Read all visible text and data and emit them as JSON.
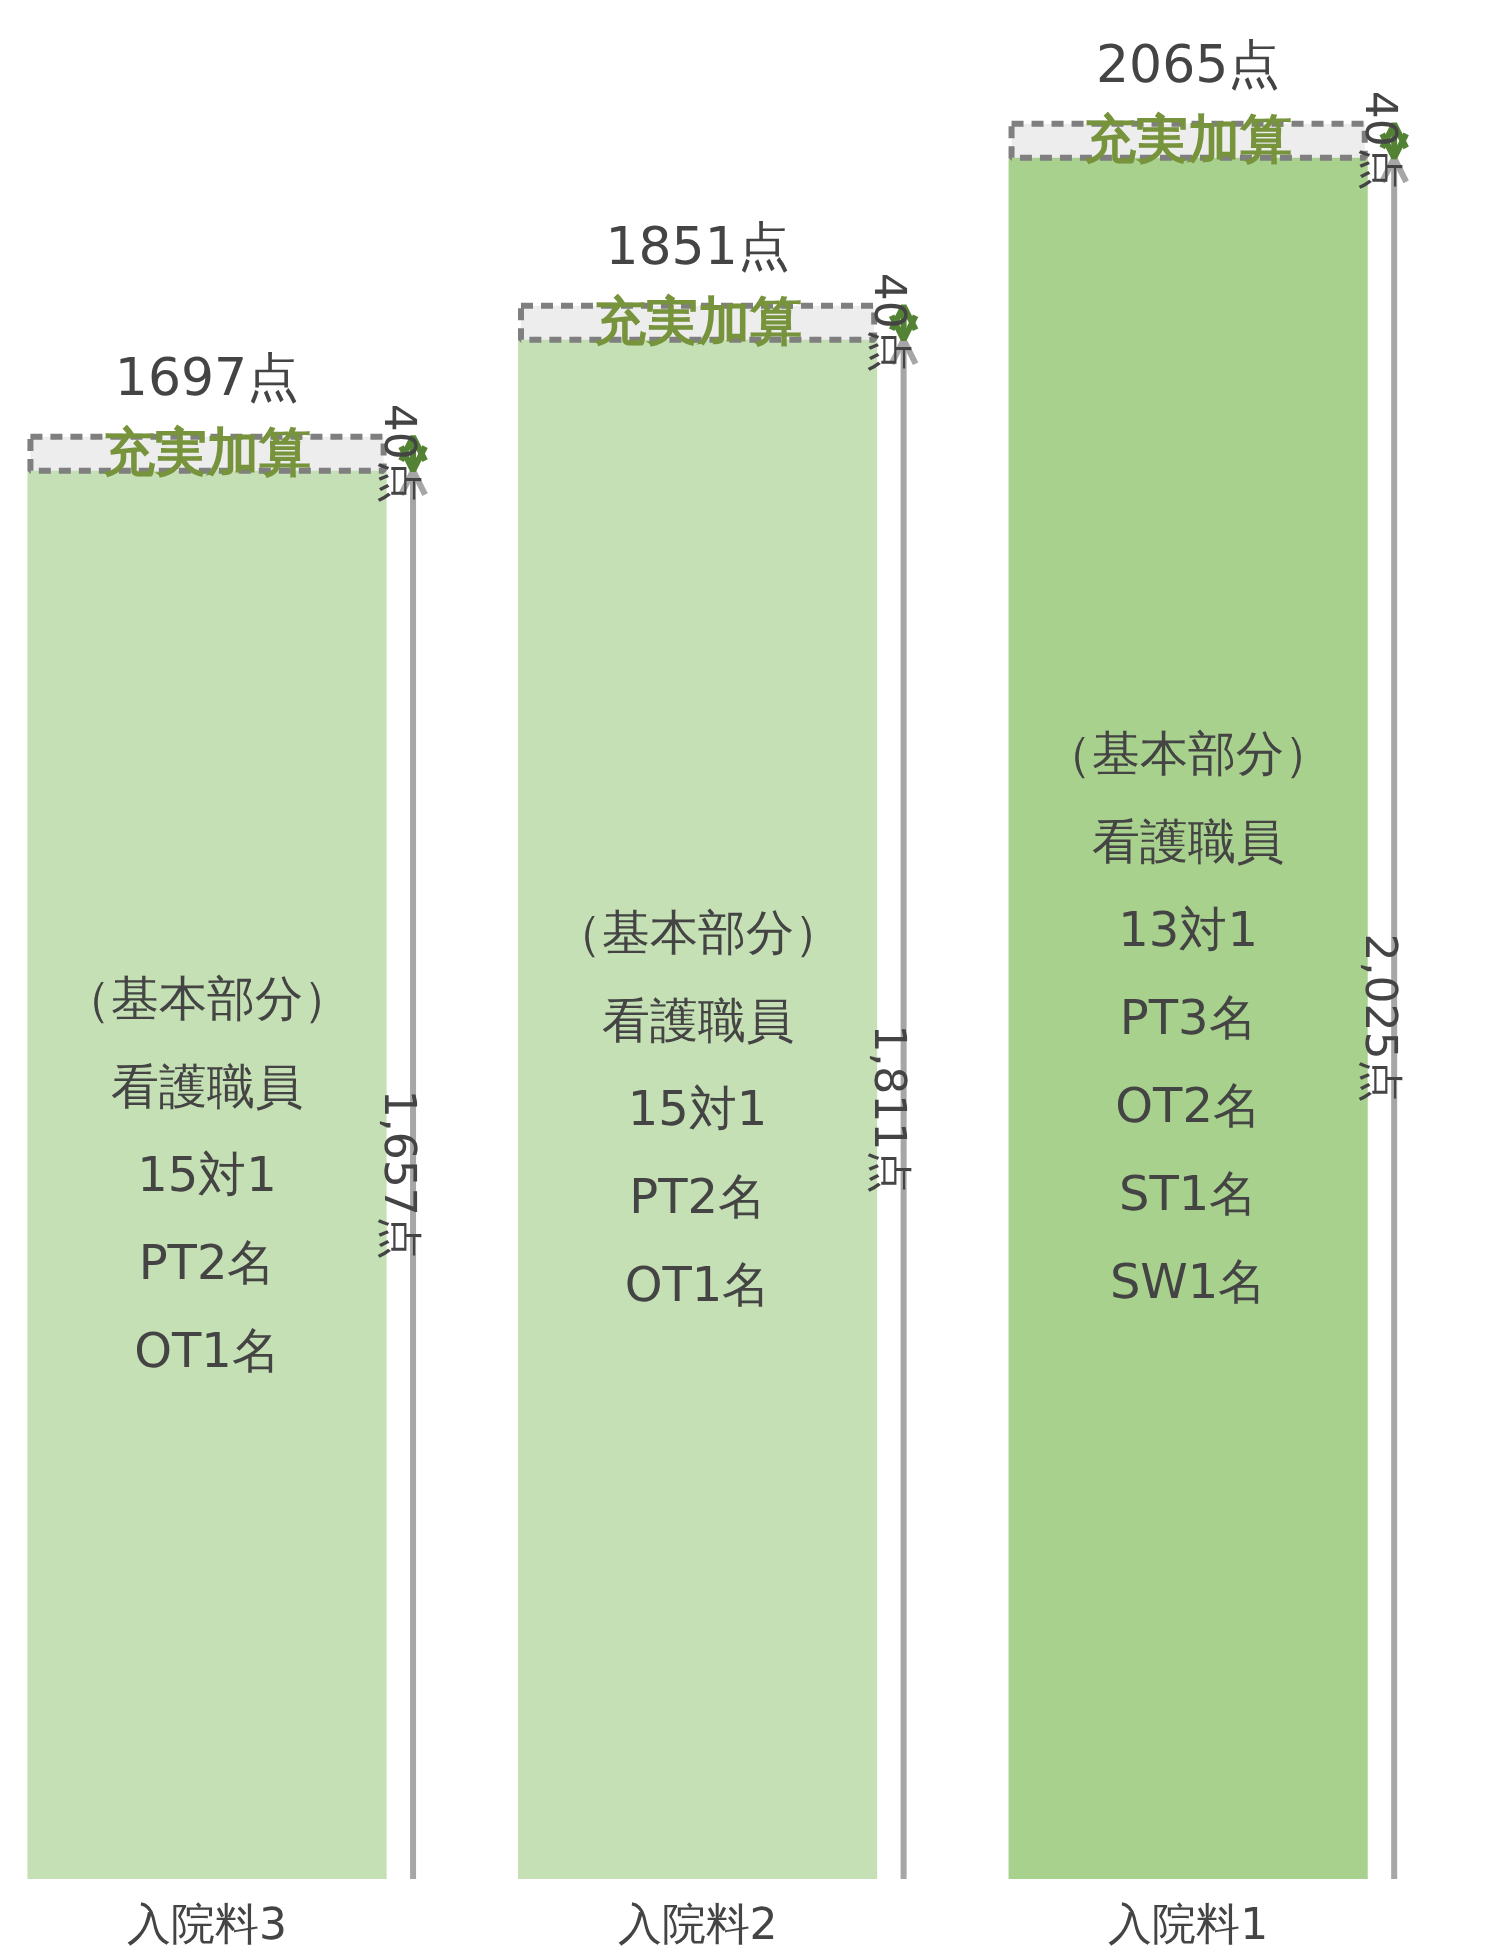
{
  "chart_data": {
    "type": "bar",
    "stacked": true,
    "categories": [
      "入院料3",
      "入院料2",
      "入院料1"
    ],
    "series": [
      {
        "colors": [
          "#c5e0b4",
          "#c5e0b4",
          "#a9d18e"
        ],
        "values": [
          1657,
          1811,
          2025
        ],
        "value_labels": [
          "1,657点",
          "1,811点",
          "2,025点"
        ]
      },
      {
        "name": "充実加算",
        "color": "#ededed",
        "line_style": "dashed",
        "values": [
          40,
          40,
          40
        ],
        "value_labels": [
          "40点",
          "40点",
          "40点"
        ]
      }
    ],
    "totals": [
      "1697点",
      "1851点",
      "2065点"
    ],
    "annotations": [
      "（基本部分）",
      "看護職員",
      "15対1",
      "PT2名",
      "OT1名",
      "（基本部分）",
      "看護職員",
      "15対1",
      "PT2名",
      "OT1名",
      "（基本部分）",
      "看護職員",
      "13対1",
      "PT3名",
      "OT2名",
      "ST1名",
      "SW1名"
    ],
    "grid": false
  }
}
